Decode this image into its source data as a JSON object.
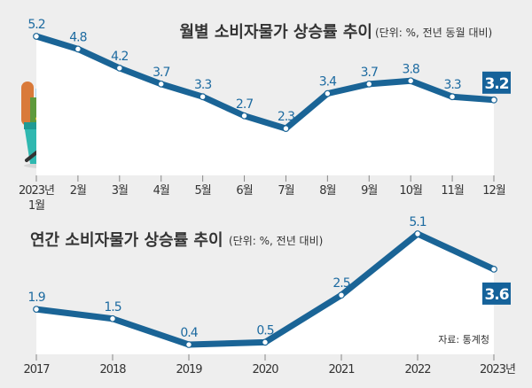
{
  "colors": {
    "line": "#1a6496",
    "background": "#eeeeee",
    "area": "#ffffff",
    "label": "#1c6aa0",
    "highlight_box": "#15629a"
  },
  "chart_data": [
    {
      "type": "line",
      "title": "월별 소비자물가 상승률 추이",
      "subtitle": "(단위: %, 전년 동월 대비)",
      "categories": [
        "2023년 1월",
        "2월",
        "3월",
        "4월",
        "5월",
        "6월",
        "7월",
        "8월",
        "9월",
        "10월",
        "11월",
        "12월"
      ],
      "tick_labels": [
        [
          "2023년",
          "1월"
        ],
        [
          "2월"
        ],
        [
          "3월"
        ],
        [
          "4월"
        ],
        [
          "5월"
        ],
        [
          "6월"
        ],
        [
          "7월"
        ],
        [
          "8월"
        ],
        [
          "9월"
        ],
        [
          "10월"
        ],
        [
          "11월"
        ],
        [
          "12월"
        ]
      ],
      "values": [
        5.2,
        4.8,
        4.2,
        3.7,
        3.3,
        2.7,
        2.3,
        3.4,
        3.7,
        3.8,
        3.3,
        3.2
      ],
      "highlight_last": true,
      "grid": false
    },
    {
      "type": "line",
      "title": "연간 소비자물가 상승률 추이",
      "subtitle": "(단위: %, 전년 대비)",
      "categories": [
        "2017",
        "2018",
        "2019",
        "2020",
        "2021",
        "2022",
        "2023년"
      ],
      "values": [
        1.9,
        1.5,
        0.4,
        0.5,
        2.5,
        5.1,
        3.6
      ],
      "highlight_last": true,
      "grid": false,
      "source": "자료: 통계청"
    }
  ],
  "illustration": {
    "icon": "grocery-basket-icon"
  }
}
